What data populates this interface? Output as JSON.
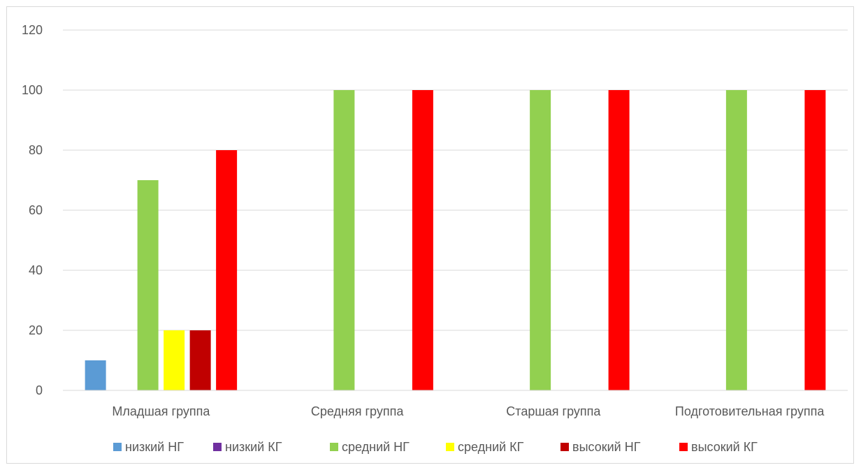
{
  "chart_data": {
    "type": "bar",
    "categories": [
      "Младшая группа",
      "Средняя группа",
      "Старшая группа",
      "Подготовительная группа"
    ],
    "series": [
      {
        "name": "низкий НГ",
        "color": "#5b9bd5",
        "values": [
          10,
          0,
          0,
          0
        ]
      },
      {
        "name": "низкий КГ",
        "color": "#7030a0",
        "values": [
          0,
          0,
          0,
          0
        ]
      },
      {
        "name": "средний НГ",
        "color": "#92d050",
        "values": [
          70,
          100,
          100,
          100
        ]
      },
      {
        "name": "средний КГ",
        "color": "#ffff00",
        "values": [
          20,
          0,
          0,
          0
        ]
      },
      {
        "name": "высокий НГ",
        "color": "#c00000",
        "values": [
          20,
          0,
          0,
          0
        ]
      },
      {
        "name": "высокий КГ",
        "color": "#ff0000",
        "values": [
          80,
          100,
          100,
          100
        ]
      }
    ],
    "ylim": [
      0,
      120
    ],
    "yticks": [
      "0",
      "20",
      "40",
      "60",
      "80",
      "100",
      "120"
    ],
    "grid": true,
    "legend_position": "bottom"
  }
}
